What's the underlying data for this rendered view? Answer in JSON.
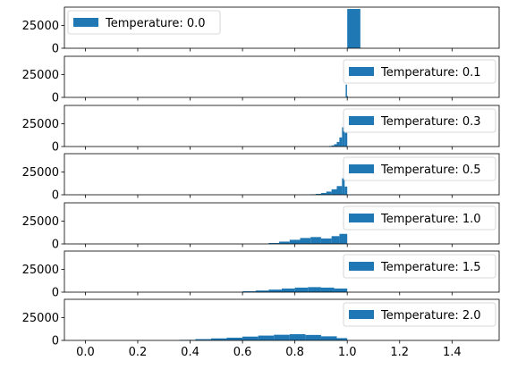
{
  "chart_data": {
    "type": "bar",
    "shared_x_axis": {
      "xlim": [
        -0.08,
        1.58
      ],
      "ticks": [
        0.0,
        0.2,
        0.4,
        0.6,
        0.8,
        1.0,
        1.2,
        1.4
      ],
      "tick_labels": [
        "0.0",
        "0.2",
        "0.4",
        "0.6",
        "0.8",
        "1.0",
        "1.2",
        "1.4"
      ]
    },
    "y_axis": {
      "ylim": [
        0,
        45000
      ],
      "ticks": [
        0,
        25000
      ],
      "tick_labels": [
        "0",
        "25000"
      ]
    },
    "bar_color": "#1f77b4",
    "subplots": [
      {
        "legend": "Temperature: 0.0",
        "legend_position": "upper left",
        "bins": [
          {
            "x0": 1.0,
            "x1": 1.05,
            "value": 43000
          }
        ]
      },
      {
        "legend": "Temperature: 0.1",
        "legend_position": "upper right",
        "bins": [
          {
            "x0": 0.994,
            "x1": 0.999,
            "value": 14000
          },
          {
            "x0": 0.999,
            "x1": 1.0,
            "value": 1500
          }
        ]
      },
      {
        "legend": "Temperature: 0.3",
        "legend_position": "upper right",
        "bins": [
          {
            "x0": 0.93,
            "x1": 0.94,
            "value": 600
          },
          {
            "x0": 0.94,
            "x1": 0.95,
            "value": 1200
          },
          {
            "x0": 0.95,
            "x1": 0.96,
            "value": 2500
          },
          {
            "x0": 0.96,
            "x1": 0.97,
            "value": 5000
          },
          {
            "x0": 0.97,
            "x1": 0.98,
            "value": 10000
          },
          {
            "x0": 0.98,
            "x1": 0.99,
            "value": 21000
          },
          {
            "x0": 0.99,
            "x1": 1.0,
            "value": 15000
          }
        ]
      },
      {
        "legend": "Temperature: 0.5",
        "legend_position": "upper right",
        "bins": [
          {
            "x0": 0.86,
            "x1": 0.88,
            "value": 500
          },
          {
            "x0": 0.88,
            "x1": 0.9,
            "value": 1000
          },
          {
            "x0": 0.9,
            "x1": 0.92,
            "value": 2000
          },
          {
            "x0": 0.92,
            "x1": 0.94,
            "value": 3500
          },
          {
            "x0": 0.94,
            "x1": 0.96,
            "value": 6000
          },
          {
            "x0": 0.96,
            "x1": 0.98,
            "value": 9500
          },
          {
            "x0": 0.98,
            "x1": 0.99,
            "value": 18000
          },
          {
            "x0": 0.99,
            "x1": 1.0,
            "value": 9000
          }
        ]
      },
      {
        "legend": "Temperature: 1.0",
        "legend_position": "upper right",
        "bins": [
          {
            "x0": 0.7,
            "x1": 0.74,
            "value": 1000
          },
          {
            "x0": 0.74,
            "x1": 0.78,
            "value": 2500
          },
          {
            "x0": 0.78,
            "x1": 0.82,
            "value": 4500
          },
          {
            "x0": 0.82,
            "x1": 0.86,
            "value": 6500
          },
          {
            "x0": 0.86,
            "x1": 0.9,
            "value": 7500
          },
          {
            "x0": 0.9,
            "x1": 0.94,
            "value": 6000
          },
          {
            "x0": 0.94,
            "x1": 0.97,
            "value": 8500
          },
          {
            "x0": 0.97,
            "x1": 1.0,
            "value": 11000
          }
        ]
      },
      {
        "legend": "Temperature: 1.5",
        "legend_position": "upper right",
        "bins": [
          {
            "x0": 0.6,
            "x1": 0.65,
            "value": 1000
          },
          {
            "x0": 0.65,
            "x1": 0.7,
            "value": 1800
          },
          {
            "x0": 0.7,
            "x1": 0.75,
            "value": 2800
          },
          {
            "x0": 0.75,
            "x1": 0.8,
            "value": 4000
          },
          {
            "x0": 0.8,
            "x1": 0.85,
            "value": 5000
          },
          {
            "x0": 0.85,
            "x1": 0.9,
            "value": 5500
          },
          {
            "x0": 0.9,
            "x1": 0.95,
            "value": 5000
          },
          {
            "x0": 0.95,
            "x1": 1.0,
            "value": 4000
          }
        ]
      },
      {
        "legend": "Temperature: 2.0",
        "legend_position": "upper right",
        "bins": [
          {
            "x0": 0.36,
            "x1": 0.42,
            "value": 600
          },
          {
            "x0": 0.42,
            "x1": 0.48,
            "value": 1400
          },
          {
            "x0": 0.48,
            "x1": 0.54,
            "value": 2200
          },
          {
            "x0": 0.54,
            "x1": 0.6,
            "value": 3000
          },
          {
            "x0": 0.6,
            "x1": 0.66,
            "value": 4200
          },
          {
            "x0": 0.66,
            "x1": 0.72,
            "value": 5300
          },
          {
            "x0": 0.72,
            "x1": 0.78,
            "value": 6200
          },
          {
            "x0": 0.78,
            "x1": 0.84,
            "value": 6800
          },
          {
            "x0": 0.84,
            "x1": 0.9,
            "value": 6000
          },
          {
            "x0": 0.9,
            "x1": 0.96,
            "value": 4500
          },
          {
            "x0": 0.96,
            "x1": 1.0,
            "value": 2500
          }
        ]
      }
    ]
  }
}
